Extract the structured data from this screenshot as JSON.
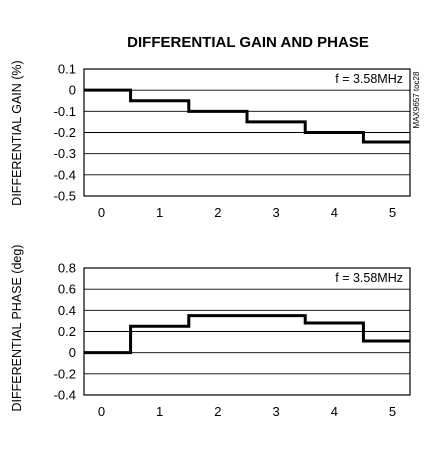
{
  "figure_title": "DIFFERENTIAL GAIN AND PHASE",
  "doc_code": "MAX9657 toc28",
  "chart_data": [
    {
      "type": "line",
      "ylabel": "DIFFERENTIAL GAIN (%)",
      "annotation": "f = 3.58MHz",
      "xlim": [
        -0.3,
        5.3
      ],
      "ylim": [
        -0.5,
        0.1
      ],
      "x_ticks": [
        "0",
        "1",
        "2",
        "3",
        "4",
        "5"
      ],
      "y_ticks": [
        "0.1",
        "0",
        "-0.1",
        "-0.2",
        "-0.3",
        "-0.4",
        "-0.5"
      ],
      "grid": "horizontal",
      "series": [
        {
          "step": "mid",
          "x": [
            0,
            1,
            2,
            3,
            4,
            5
          ],
          "y": [
            0.0,
            -0.05,
            -0.1,
            -0.15,
            -0.2,
            -0.245
          ]
        }
      ]
    },
    {
      "type": "line",
      "ylabel": "DIFFERENTIAL PHASE (deg)",
      "annotation": "f = 3.58MHz",
      "xlim": [
        -0.3,
        5.3
      ],
      "ylim": [
        -0.4,
        0.8
      ],
      "x_ticks": [
        "0",
        "1",
        "2",
        "3",
        "4",
        "5"
      ],
      "y_ticks": [
        "0.8",
        "0.6",
        "0.4",
        "0.2",
        "0",
        "-0.2",
        "-0.4"
      ],
      "grid": "horizontal",
      "series": [
        {
          "step": "mid",
          "x": [
            0,
            1,
            2,
            3,
            4,
            5
          ],
          "y": [
            0.0,
            0.25,
            0.35,
            0.35,
            0.28,
            0.11
          ]
        }
      ]
    }
  ]
}
